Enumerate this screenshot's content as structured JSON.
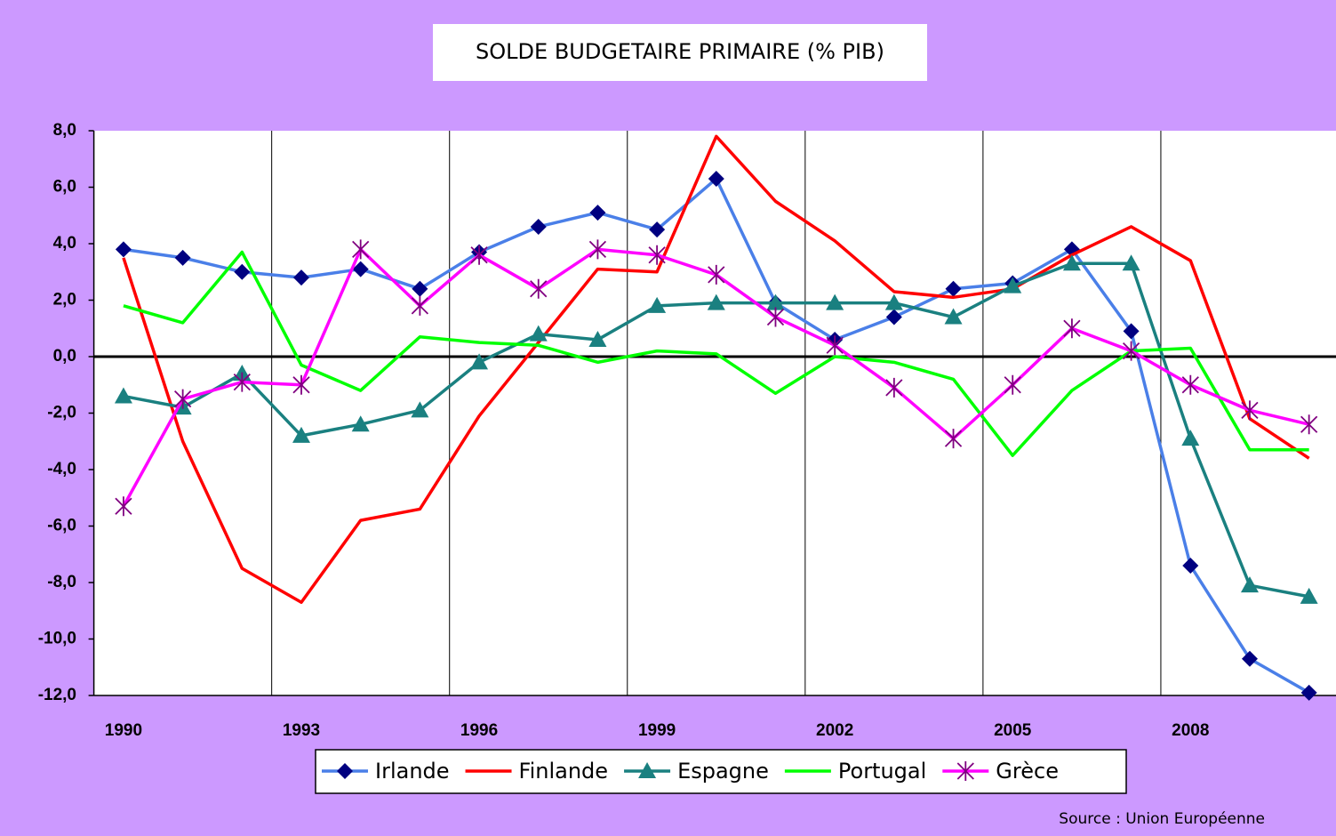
{
  "chart_data": {
    "type": "line",
    "title": "SOLDE BUDGETAIRE PRIMAIRE (% PIB)",
    "categories": [
      "1990",
      null,
      null,
      "1993",
      null,
      null,
      "1996",
      null,
      null,
      "1999",
      null,
      null,
      "2002",
      null,
      null,
      "2005",
      null,
      null,
      "2008",
      null,
      null
    ],
    "ylim": [
      -12,
      8
    ],
    "yticks": [
      {
        "value": -12,
        "label": "-12,0"
      },
      {
        "value": -10,
        "label": "-10,0"
      },
      {
        "value": -8,
        "label": "-8,0"
      },
      {
        "value": -6,
        "label": "-6,0"
      },
      {
        "value": -4,
        "label": "-4,0"
      },
      {
        "value": -2,
        "label": "-2,0"
      },
      {
        "value": 0,
        "label": "0,0"
      },
      {
        "value": 2,
        "label": "2,0"
      },
      {
        "value": 4,
        "label": "4,0"
      },
      {
        "value": 6,
        "label": "6,0"
      },
      {
        "value": 8,
        "label": "8,0"
      }
    ],
    "series": [
      {
        "name": "Irlande",
        "color": "#4a7fe8",
        "marker": "diamond",
        "marker_color": "#000080",
        "values": [
          3.8,
          3.5,
          3.0,
          2.8,
          3.1,
          2.4,
          3.7,
          4.6,
          5.1,
          4.5,
          6.3,
          1.9,
          0.6,
          1.4,
          2.4,
          2.6,
          3.8,
          0.9,
          -7.4,
          -10.7,
          -11.9
        ]
      },
      {
        "name": "Finlande",
        "color": "#ff0000",
        "marker": "none",
        "marker_color": "#ff0000",
        "values": [
          3.5,
          -3.0,
          -7.5,
          -8.7,
          -5.8,
          -5.4,
          -2.1,
          0.5,
          3.1,
          3.0,
          7.8,
          5.5,
          4.1,
          2.3,
          2.1,
          2.4,
          3.6,
          4.6,
          3.4,
          -2.2,
          -3.6
        ]
      },
      {
        "name": "Espagne",
        "color": "#1a8080",
        "marker": "triangle",
        "marker_color": "#1a8080",
        "values": [
          -1.4,
          -1.8,
          -0.6,
          -2.8,
          -2.4,
          -1.9,
          -0.2,
          0.8,
          0.6,
          1.8,
          1.9,
          1.9,
          1.9,
          1.9,
          1.4,
          2.5,
          3.3,
          3.3,
          -2.9,
          -8.1,
          -8.5
        ]
      },
      {
        "name": "Portugal",
        "color": "#00ff00",
        "marker": "none",
        "marker_color": "#00ff00",
        "values": [
          1.8,
          1.2,
          3.7,
          -0.3,
          -1.2,
          0.7,
          0.5,
          0.4,
          -0.2,
          0.2,
          0.1,
          -1.3,
          0.0,
          -0.2,
          -0.8,
          -3.5,
          -1.2,
          0.2,
          0.3,
          -3.3,
          -3.3
        ]
      },
      {
        "name": "Grèce",
        "color": "#ff00ff",
        "marker": "star",
        "marker_color": "#800080",
        "values": [
          -5.3,
          -1.5,
          -0.9,
          -1.0,
          3.8,
          1.8,
          3.6,
          2.4,
          3.8,
          3.6,
          2.9,
          1.4,
          0.4,
          -1.1,
          -2.9,
          -1.0,
          1.0,
          0.2,
          -1.0,
          -1.9,
          -2.4
        ]
      }
    ],
    "source": "Source : Union Européenne"
  }
}
